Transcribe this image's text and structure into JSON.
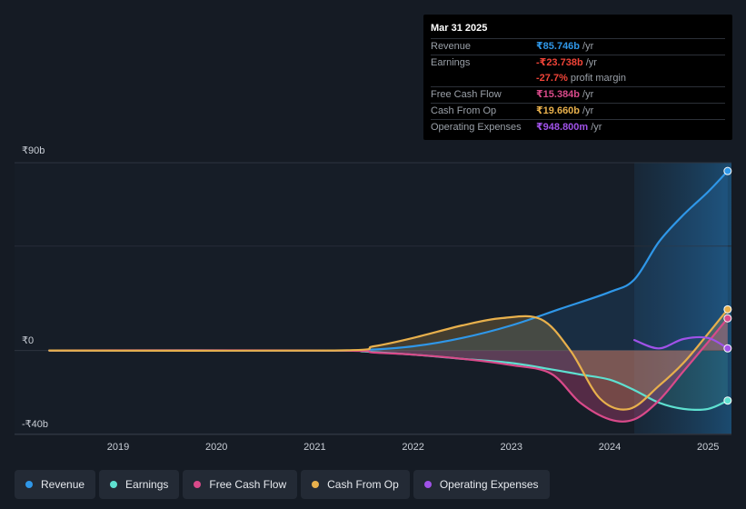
{
  "chart_data": {
    "type": "area",
    "y_axis": {
      "min": -45,
      "max": 90,
      "unit": "₹b",
      "labels": [
        "₹90b",
        "₹0",
        "-₹40b"
      ],
      "label_values": [
        90,
        0,
        -40
      ]
    },
    "x_axis": {
      "min": 2018.2,
      "max": 2025.25,
      "ticks": [
        "2019",
        "2020",
        "2021",
        "2022",
        "2023",
        "2024",
        "2025"
      ],
      "tick_values": [
        2019,
        2020,
        2021,
        2022,
        2023,
        2024,
        2025
      ]
    },
    "forecast_region_start": 2024.25,
    "series": [
      {
        "name": "Revenue",
        "key": "revenue",
        "color": "#2f97e8",
        "points": [
          [
            2018.3,
            0
          ],
          [
            2021.2,
            0
          ],
          [
            2021.5,
            0.2
          ],
          [
            2022.0,
            2
          ],
          [
            2022.5,
            6
          ],
          [
            2023.0,
            12
          ],
          [
            2023.5,
            20
          ],
          [
            2024.0,
            28
          ],
          [
            2024.25,
            34
          ],
          [
            2024.5,
            52
          ],
          [
            2024.75,
            65
          ],
          [
            2025.0,
            76
          ],
          [
            2025.2,
            86
          ]
        ]
      },
      {
        "name": "Earnings",
        "key": "earnings",
        "color": "#5ee0d0",
        "points": [
          [
            2018.3,
            0
          ],
          [
            2021.2,
            0
          ],
          [
            2021.5,
            -0.5
          ],
          [
            2022.0,
            -2
          ],
          [
            2022.5,
            -4
          ],
          [
            2023.0,
            -6
          ],
          [
            2023.4,
            -9
          ],
          [
            2023.7,
            -11.5
          ],
          [
            2024.0,
            -14
          ],
          [
            2024.25,
            -19
          ],
          [
            2024.5,
            -25
          ],
          [
            2024.75,
            -28
          ],
          [
            2025.0,
            -28
          ],
          [
            2025.2,
            -24
          ]
        ]
      },
      {
        "name": "Free Cash Flow",
        "key": "fcf",
        "color": "#d94a8a",
        "points": [
          [
            2018.3,
            0
          ],
          [
            2021.2,
            0
          ],
          [
            2021.6,
            -1
          ],
          [
            2022.0,
            -2
          ],
          [
            2022.5,
            -4
          ],
          [
            2023.0,
            -7
          ],
          [
            2023.4,
            -11
          ],
          [
            2023.7,
            -25
          ],
          [
            2024.0,
            -33
          ],
          [
            2024.25,
            -33
          ],
          [
            2024.5,
            -24
          ],
          [
            2024.75,
            -10
          ],
          [
            2025.0,
            4
          ],
          [
            2025.2,
            15.4
          ]
        ]
      },
      {
        "name": "Cash From Op",
        "key": "cfo",
        "color": "#e8b04c",
        "points": [
          [
            2018.3,
            0
          ],
          [
            2021.2,
            0
          ],
          [
            2021.6,
            2
          ],
          [
            2022.0,
            6
          ],
          [
            2022.5,
            12
          ],
          [
            2022.9,
            15.5
          ],
          [
            2023.3,
            15
          ],
          [
            2023.6,
            0
          ],
          [
            2023.9,
            -23
          ],
          [
            2024.2,
            -28
          ],
          [
            2024.5,
            -17
          ],
          [
            2024.75,
            -6
          ],
          [
            2025.0,
            8
          ],
          [
            2025.2,
            19.7
          ]
        ]
      },
      {
        "name": "Operating Expenses",
        "key": "opex",
        "color": "#a052e8",
        "points": [
          [
            2024.25,
            5
          ],
          [
            2024.5,
            1
          ],
          [
            2024.75,
            5.5
          ],
          [
            2025.0,
            6
          ],
          [
            2025.2,
            1
          ]
        ]
      }
    ]
  },
  "tooltip": {
    "date": "Mar 31 2025",
    "rows": [
      {
        "label": "Revenue",
        "value": "₹85.746b",
        "unit": "/yr",
        "color": "#2f97e8"
      },
      {
        "label": "Earnings",
        "value": "-₹23.738b",
        "unit": "/yr",
        "color": "#f04438"
      },
      {
        "label": "",
        "value": "-27.7%",
        "unit": "profit margin",
        "color": "#f04438"
      },
      {
        "label": "Free Cash Flow",
        "value": "₹15.384b",
        "unit": "/yr",
        "color": "#d94a8a"
      },
      {
        "label": "Cash From Op",
        "value": "₹19.660b",
        "unit": "/yr",
        "color": "#e8b04c"
      },
      {
        "label": "Operating Expenses",
        "value": "₹948.800m",
        "unit": "/yr",
        "color": "#a052e8"
      }
    ]
  },
  "legend": [
    {
      "label": "Revenue",
      "color": "#2f97e8"
    },
    {
      "label": "Earnings",
      "color": "#5ee0d0"
    },
    {
      "label": "Free Cash Flow",
      "color": "#d94a8a"
    },
    {
      "label": "Cash From Op",
      "color": "#e8b04c"
    },
    {
      "label": "Operating Expenses",
      "color": "#a052e8"
    }
  ]
}
